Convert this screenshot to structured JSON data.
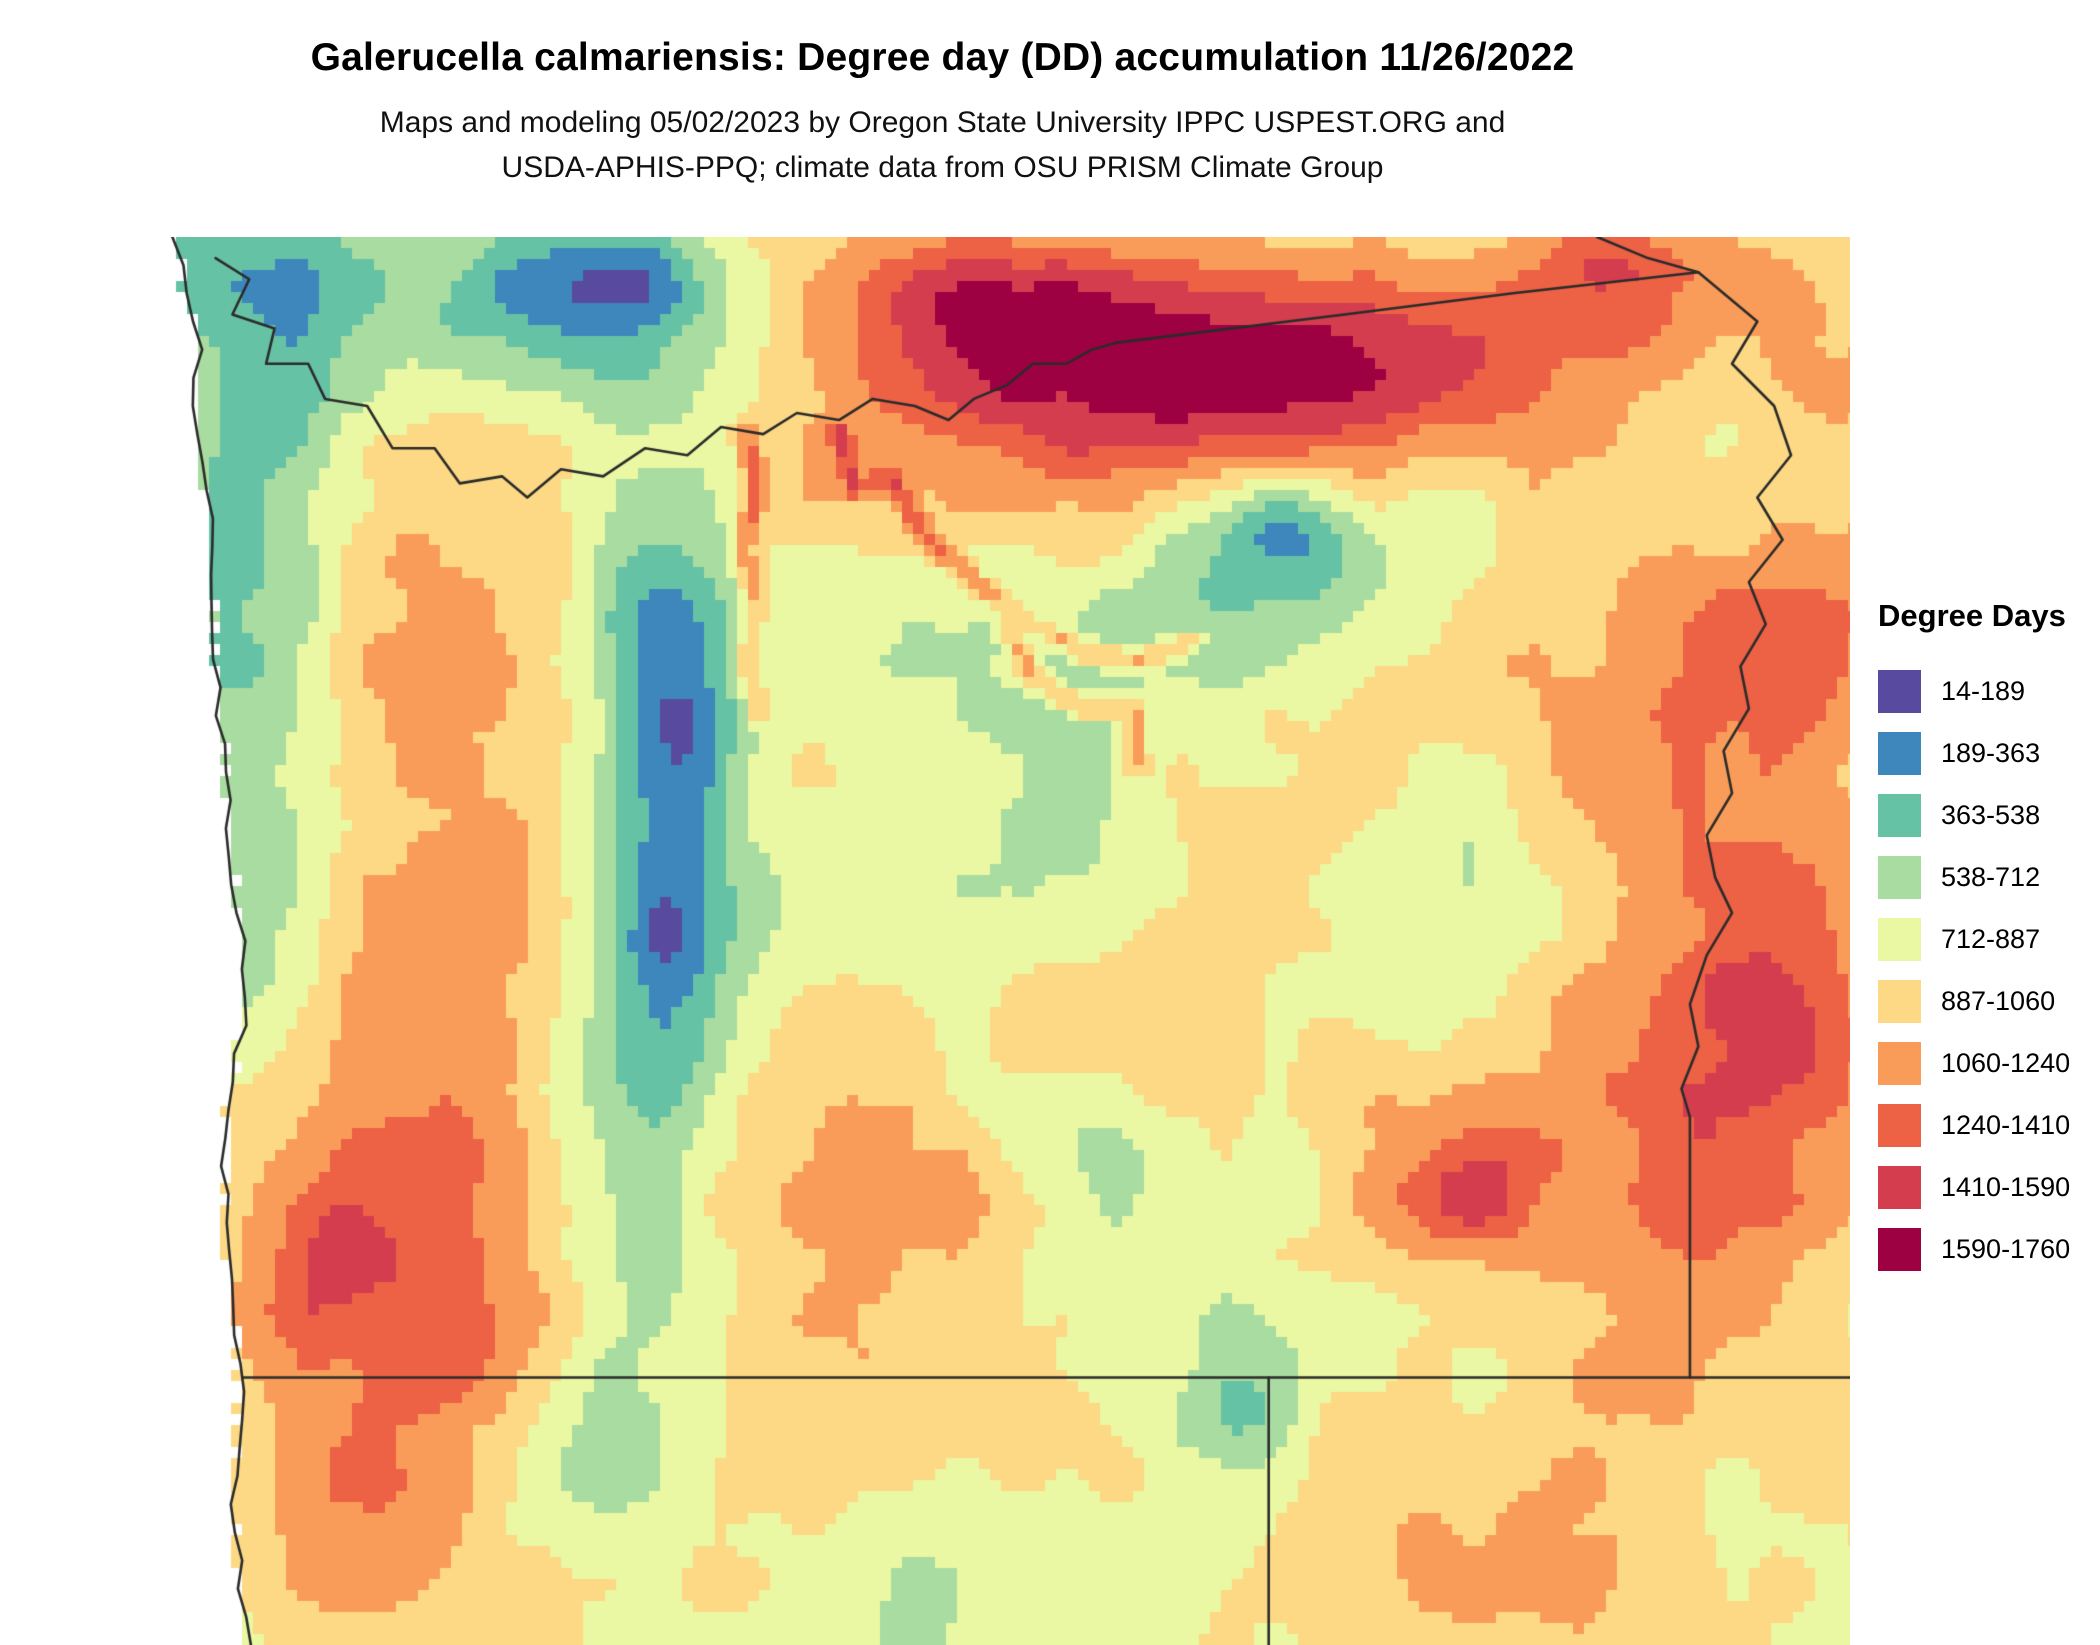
{
  "title": "Galerucella calmariensis: Degree day (DD) accumulation 11/26/2022",
  "subtitle": {
    "line1": "Maps and modeling 05/02/2023 by Oregon State University IPPC USPEST.ORG and",
    "line2": "USDA-APHIS-PPQ; climate data from OSU PRISM Climate Group"
  },
  "legend": {
    "title": "Degree Days",
    "entries": [
      {
        "label": "14-189",
        "color": "#574A9F"
      },
      {
        "label": "189-363",
        "color": "#3E87BC"
      },
      {
        "label": "363-538",
        "color": "#66C2A5"
      },
      {
        "label": "538-712",
        "color": "#A9DCA0"
      },
      {
        "label": "712-887",
        "color": "#EAF7A3"
      },
      {
        "label": "887-1060",
        "color": "#FDD985"
      },
      {
        "label": "1060-1240",
        "color": "#FA9C59"
      },
      {
        "label": "1240-1410",
        "color": "#ED6145"
      },
      {
        "label": "1410-1590",
        "color": "#D43D4E"
      },
      {
        "label": "1590-1760",
        "color": "#9E0142"
      }
    ],
    "breaks": [
      14,
      189,
      363,
      538,
      712,
      887,
      1060,
      1240,
      1410,
      1590,
      1760
    ]
  },
  "map": {
    "border_color": "#2B2B2B",
    "ocean_color": "#FFFFFF"
  }
}
